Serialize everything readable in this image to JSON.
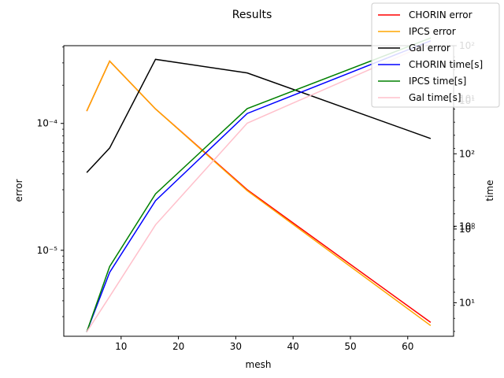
{
  "chart_data": {
    "type": "line",
    "title": "Results",
    "xlabel": "mesh",
    "ylabel_left": "error",
    "ylabel_right": "time",
    "xlim": [
      0,
      68
    ],
    "x_ticks": [
      10,
      20,
      30,
      40,
      50,
      60
    ],
    "x_tick_labels": [
      "10",
      "20",
      "30",
      "40",
      "50",
      "60"
    ],
    "left_scale": "log",
    "ylim_left": [
      2.1e-06,
      0.00041
    ],
    "left_ticks": [
      1e-05,
      0.0001
    ],
    "left_tick_labels": [
      "10⁻⁵",
      "10⁻⁴"
    ],
    "right_scale": "log",
    "ylim_right": [
      0.0,
      3.0
    ],
    "right_ticks": [
      {
        "label": "10¹",
        "pos": 0.346
      },
      {
        "label": "10⁰",
        "pos": 1.107
      },
      {
        "label": "10⁰",
        "pos": 1.136
      },
      {
        "label": "10²",
        "pos": 1.884
      },
      {
        "label": "10¹",
        "pos": 2.43
      },
      {
        "label": "10¹",
        "pos": 2.45
      },
      {
        "label": "10²",
        "pos": 3.0
      }
    ],
    "series": [
      {
        "name": "CHORIN error",
        "axis": "left",
        "color": "#ff0000",
        "x": [
          4,
          8,
          16,
          32,
          64
        ],
        "y": [
          0.000125,
          0.00031,
          0.00013,
          3e-05,
          2.7e-06
        ]
      },
      {
        "name": "IPCS error",
        "axis": "left",
        "color": "#ffa500",
        "x": [
          4,
          8,
          16,
          32,
          64
        ],
        "y": [
          0.000125,
          0.00031,
          0.00013,
          2.95e-05,
          2.55e-06
        ]
      },
      {
        "name": "Gal error",
        "axis": "left",
        "color": "#000000",
        "x": [
          4,
          8,
          16,
          32,
          64
        ],
        "y": [
          4.1e-05,
          6.4e-05,
          0.00032,
          0.00025,
          7.6e-05
        ]
      },
      {
        "name": "CHORIN time[s]",
        "axis": "right",
        "color": "#0000ff",
        "x": [
          4,
          8,
          16,
          32,
          64
        ],
        "y": [
          0.045,
          0.66,
          1.4,
          2.3,
          3.05
        ]
      },
      {
        "name": "IPCS time[s]",
        "axis": "right",
        "color": "#008000",
        "x": [
          4,
          8,
          16,
          32,
          64
        ],
        "y": [
          0.045,
          0.72,
          1.47,
          2.35,
          3.08
        ]
      },
      {
        "name": "Gal time[s]",
        "axis": "right",
        "color": "#ffc0cb",
        "x": [
          4,
          8,
          16,
          32,
          64
        ],
        "y": [
          0.045,
          0.41,
          1.15,
          2.2,
          3.03
        ]
      }
    ],
    "legend": "top-right",
    "grid": false
  }
}
